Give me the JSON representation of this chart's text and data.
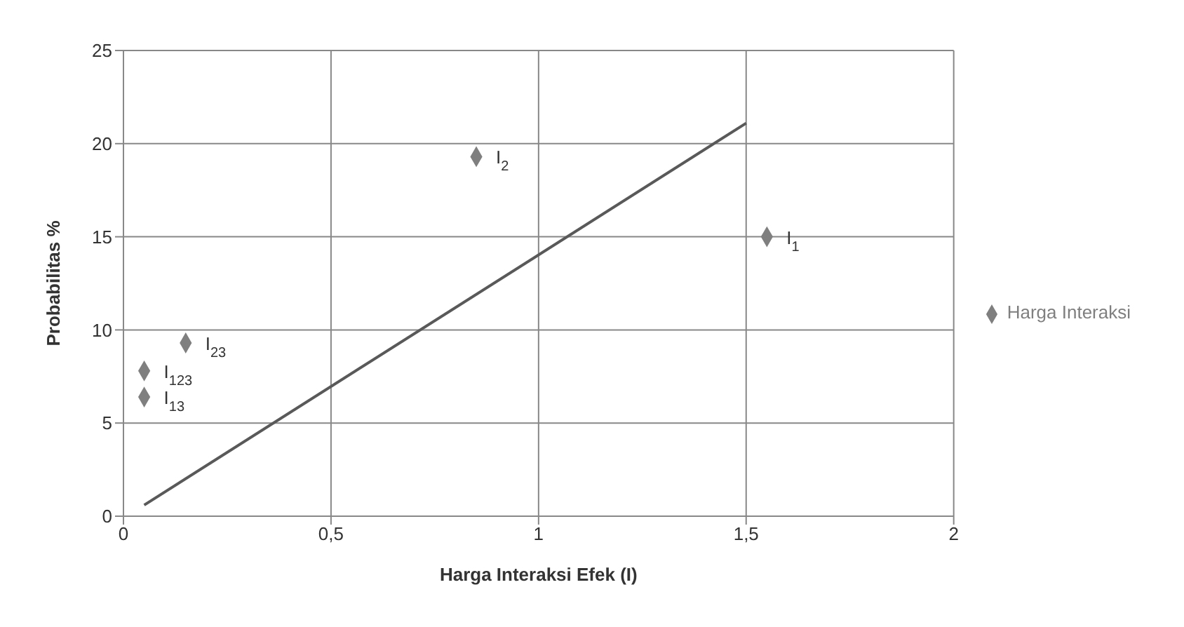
{
  "chart_data": {
    "type": "scatter",
    "xlabel": "Harga Interaksi Efek (I)",
    "ylabel": "Probabilitas %",
    "series": [
      {
        "name": "Harga Interaksi",
        "color": "#7f7f7f",
        "x": [
          1.55,
          0.85,
          0.15,
          0.05,
          0.05
        ],
        "values": [
          15,
          19.3,
          9.3,
          7.8,
          6.4
        ],
        "marker": "diamond"
      },
      {
        "type": "line",
        "color": "#595959",
        "x": [
          0.05,
          1.5
        ],
        "values": [
          0.6,
          21.1
        ],
        "marker": "none"
      }
    ],
    "annotations": [
      {
        "text": "I$_{1}$",
        "x": 1.55,
        "y": 15
      },
      {
        "text": "I$_{2}$",
        "x": 0.85,
        "y": 19.3
      },
      {
        "text": "I$_{23}$",
        "x": 0.15,
        "y": 9.3
      },
      {
        "text": "I$_{123}$",
        "x": 0.05,
        "y": 7.8
      },
      {
        "text": "I$_{13}$",
        "x": 0.05,
        "y": 6.4
      }
    ],
    "xlim": [
      0,
      2
    ],
    "xticks": [
      0,
      {
        "value": 0.5,
        "label": "0,5"
      },
      1,
      {
        "value": 1.5,
        "label": "1,5"
      },
      2
    ],
    "ylim": [
      0,
      25
    ],
    "yticks": [
      0,
      5,
      10,
      15,
      20,
      25
    ],
    "grid": true,
    "legend": "right"
  }
}
